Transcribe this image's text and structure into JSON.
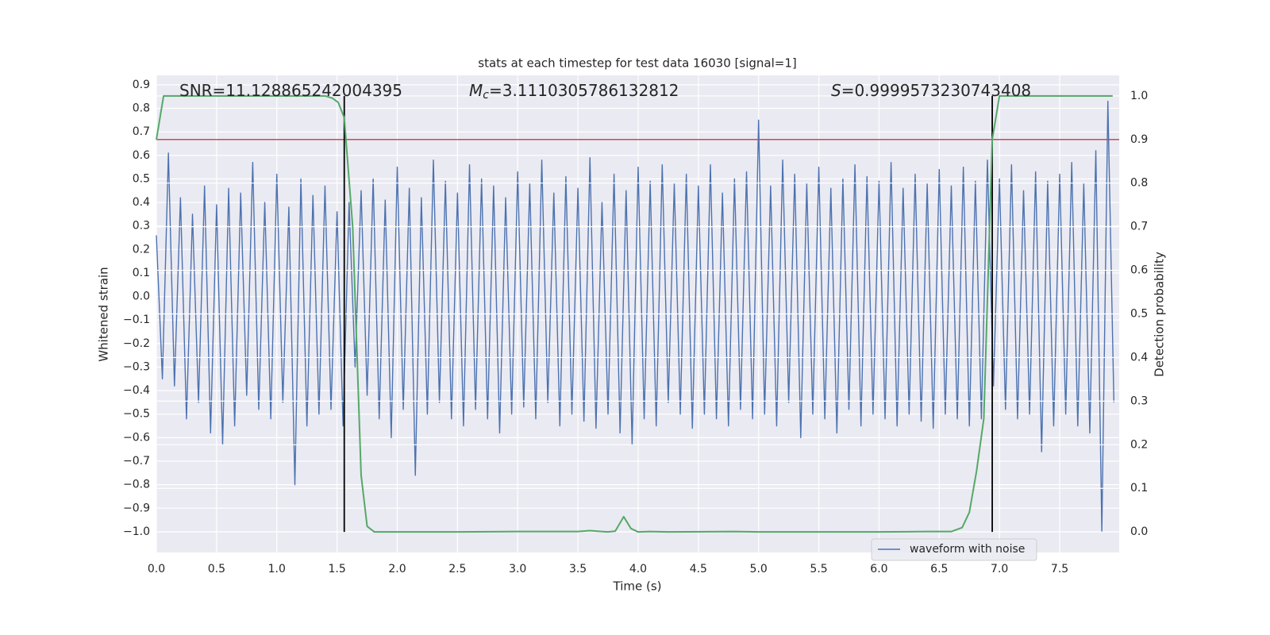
{
  "chart_data": {
    "type": "line",
    "title": "stats at each timestep for test data 16030 [signal=1]",
    "xlabel": "Time (s)",
    "ylabel": "Whitened strain",
    "y2label": "Detection probability",
    "grid": true,
    "legend": "best",
    "xlim": [
      0,
      7.994
    ],
    "ylim": [
      -1.088,
      0.94
    ],
    "y2lim": [
      -0.047,
      1.047
    ],
    "xticks": [
      {
        "value": 0,
        "label": "0.0"
      },
      {
        "value": 0.5,
        "label": "0.5"
      },
      {
        "value": 1,
        "label": "1.0"
      },
      {
        "value": 1.5,
        "label": "1.5"
      },
      {
        "value": 2,
        "label": "2.0"
      },
      {
        "value": 2.5,
        "label": "2.5"
      },
      {
        "value": 3,
        "label": "3.0"
      },
      {
        "value": 3.5,
        "label": "3.5"
      },
      {
        "value": 4,
        "label": "4.0"
      },
      {
        "value": 4.5,
        "label": "4.5"
      },
      {
        "value": 5,
        "label": "5.0"
      },
      {
        "value": 5.5,
        "label": "5.5"
      },
      {
        "value": 6,
        "label": "6.0"
      },
      {
        "value": 6.5,
        "label": "6.5"
      },
      {
        "value": 7,
        "label": "7.0"
      },
      {
        "value": 7.5,
        "label": "7.5"
      }
    ],
    "yticks": [
      {
        "value": -1,
        "label": "−1.0"
      },
      {
        "value": -0.9,
        "label": "−0.9"
      },
      {
        "value": -0.8,
        "label": "−0.8"
      },
      {
        "value": -0.7,
        "label": "−0.7"
      },
      {
        "value": -0.6,
        "label": "−0.6"
      },
      {
        "value": -0.5,
        "label": "−0.5"
      },
      {
        "value": -0.4,
        "label": "−0.4"
      },
      {
        "value": -0.3,
        "label": "−0.3"
      },
      {
        "value": -0.2,
        "label": "−0.2"
      },
      {
        "value": -0.1,
        "label": "−0.1"
      },
      {
        "value": 0,
        "label": "0.0"
      },
      {
        "value": 0.1,
        "label": "0.1"
      },
      {
        "value": 0.2,
        "label": "0.2"
      },
      {
        "value": 0.3,
        "label": "0.3"
      },
      {
        "value": 0.4,
        "label": "0.4"
      },
      {
        "value": 0.5,
        "label": "0.5"
      },
      {
        "value": 0.6,
        "label": "0.6"
      },
      {
        "value": 0.7,
        "label": "0.7"
      },
      {
        "value": 0.8,
        "label": "0.8"
      },
      {
        "value": 0.9,
        "label": "0.9"
      }
    ],
    "y2ticks": [
      {
        "value": 0,
        "label": "0.0"
      },
      {
        "value": 0.1,
        "label": "0.1"
      },
      {
        "value": 0.2,
        "label": "0.2"
      },
      {
        "value": 0.3,
        "label": "0.3"
      },
      {
        "value": 0.4,
        "label": "0.4"
      },
      {
        "value": 0.5,
        "label": "0.5"
      },
      {
        "value": 0.6,
        "label": "0.6"
      },
      {
        "value": 0.7,
        "label": "0.7"
      },
      {
        "value": 0.8,
        "label": "0.8"
      },
      {
        "value": 0.9,
        "label": "0.9"
      },
      {
        "value": 1,
        "label": "1.0"
      }
    ],
    "threshold": {
      "value": 0.9,
      "axis": "y2",
      "color": "#c44e52"
    },
    "vlines": {
      "x": [
        1.56,
        6.94
      ],
      "color": "#000000"
    },
    "annotations": [
      {
        "text": "SNR=11.128865242004395"
      },
      {
        "symbol": "M",
        "subscript": "c",
        "text": "=3.1110305786132812"
      },
      {
        "symbol": "S",
        "text": "=0.9999573230743408"
      }
    ],
    "series": [
      {
        "name": "waveform with noise",
        "color": "#4c72b0",
        "x": [
          0,
          0.05,
          0.1,
          0.15,
          0.2,
          0.25,
          0.3,
          0.35,
          0.4,
          0.45,
          0.5,
          0.55,
          0.6,
          0.65,
          0.7,
          0.75,
          0.8,
          0.85,
          0.9,
          0.95,
          1,
          1.05,
          1.1,
          1.15,
          1.2,
          1.25,
          1.3,
          1.35,
          1.4,
          1.45,
          1.5,
          1.55,
          1.6,
          1.65,
          1.7,
          1.75,
          1.8,
          1.85,
          1.9,
          1.95,
          2,
          2.05,
          2.1,
          2.15,
          2.2,
          2.25,
          2.3,
          2.35,
          2.4,
          2.45,
          2.5,
          2.55,
          2.6,
          2.65,
          2.7,
          2.75,
          2.8,
          2.85,
          2.9,
          2.95,
          3,
          3.05,
          3.1,
          3.15,
          3.2,
          3.25,
          3.3,
          3.35,
          3.4,
          3.45,
          3.5,
          3.55,
          3.6,
          3.65,
          3.7,
          3.75,
          3.8,
          3.85,
          3.9,
          3.95,
          4,
          4.05,
          4.1,
          4.15,
          4.2,
          4.25,
          4.3,
          4.35,
          4.4,
          4.45,
          4.5,
          4.55,
          4.6,
          4.65,
          4.7,
          4.75,
          4.8,
          4.85,
          4.9,
          4.95,
          5,
          5.05,
          5.1,
          5.15,
          5.2,
          5.25,
          5.3,
          5.35,
          5.4,
          5.45,
          5.5,
          5.55,
          5.6,
          5.65,
          5.7,
          5.75,
          5.8,
          5.85,
          5.9,
          5.95,
          6,
          6.05,
          6.1,
          6.15,
          6.2,
          6.25,
          6.3,
          6.35,
          6.4,
          6.45,
          6.5,
          6.55,
          6.6,
          6.65,
          6.7,
          6.75,
          6.8,
          6.85,
          6.9,
          6.95,
          7,
          7.05,
          7.1,
          7.15,
          7.2,
          7.25,
          7.3,
          7.35,
          7.4,
          7.45,
          7.5,
          7.55,
          7.6,
          7.65,
          7.7,
          7.75,
          7.8,
          7.85,
          7.9,
          7.95
        ],
        "values": [
          0.26,
          -0.35,
          0.61,
          -0.38,
          0.42,
          -0.52,
          0.35,
          -0.45,
          0.47,
          -0.58,
          0.39,
          -0.63,
          0.46,
          -0.55,
          0.44,
          -0.42,
          0.57,
          -0.48,
          0.4,
          -0.52,
          0.52,
          -0.45,
          0.38,
          -0.8,
          0.5,
          -0.55,
          0.43,
          -0.5,
          0.47,
          -0.48,
          0.36,
          -0.55,
          0.4,
          -0.3,
          0.45,
          -0.42,
          0.5,
          -0.52,
          0.41,
          -0.6,
          0.55,
          -0.48,
          0.46,
          -0.76,
          0.42,
          -0.5,
          0.58,
          -0.45,
          0.49,
          -0.52,
          0.44,
          -0.55,
          0.56,
          -0.48,
          0.5,
          -0.52,
          0.47,
          -0.58,
          0.42,
          -0.5,
          0.53,
          -0.47,
          0.48,
          -0.52,
          0.58,
          -0.45,
          0.44,
          -0.55,
          0.51,
          -0.5,
          0.46,
          -0.53,
          0.59,
          -0.56,
          0.4,
          -0.5,
          0.52,
          -0.58,
          0.45,
          -0.63,
          0.55,
          -0.52,
          0.49,
          -0.55,
          0.56,
          -0.45,
          0.48,
          -0.5,
          0.52,
          -0.56,
          0.47,
          -0.5,
          0.56,
          -0.52,
          0.44,
          -0.55,
          0.5,
          -0.48,
          0.53,
          -0.52,
          0.75,
          -0.5,
          0.47,
          -0.55,
          0.58,
          -0.45,
          0.52,
          -0.6,
          0.48,
          -0.5,
          0.55,
          -0.52,
          0.46,
          -0.58,
          0.5,
          -0.48,
          0.56,
          -0.55,
          0.51,
          -0.5,
          0.49,
          -0.52,
          0.57,
          -0.55,
          0.46,
          -0.5,
          0.52,
          -0.53,
          0.48,
          -0.56,
          0.54,
          -0.5,
          0.47,
          -0.52,
          0.55,
          -0.55,
          0.49,
          -0.52,
          0.58,
          -0.38,
          0.5,
          -0.48,
          0.56,
          -0.52,
          0.45,
          -0.5,
          0.53,
          -0.66,
          0.49,
          -0.55,
          0.52,
          -0.5,
          0.57,
          -0.55,
          0.48,
          -0.58,
          0.62,
          -1.0,
          0.83,
          -0.45
        ]
      },
      {
        "color": "#55a868",
        "axis": "y2",
        "x": [
          0,
          0.06,
          0.12,
          0.5,
          1,
          1.3,
          1.4,
          1.46,
          1.51,
          1.56,
          1.63,
          1.7,
          1.75,
          1.81,
          2,
          2.5,
          3,
          3.5,
          3.6,
          3.75,
          3.81,
          3.88,
          3.94,
          4,
          4.1,
          4.25,
          4.8,
          5,
          6,
          6.4,
          6.6,
          6.69,
          6.75,
          6.81,
          6.87,
          6.94,
          7,
          7.5,
          7.94
        ],
        "values": [
          0.9,
          1,
          1,
          1,
          1,
          1,
          1,
          0.995,
          0.985,
          0.95,
          0.7,
          0.13,
          0.013,
          0,
          0,
          0,
          0.001,
          0.001,
          0.003,
          0,
          0.002,
          0.035,
          0.008,
          0,
          0.001,
          0,
          0.001,
          0,
          0,
          0.001,
          0.001,
          0.01,
          0.045,
          0.14,
          0.26,
          0.9,
          1,
          1,
          1
        ]
      }
    ]
  }
}
